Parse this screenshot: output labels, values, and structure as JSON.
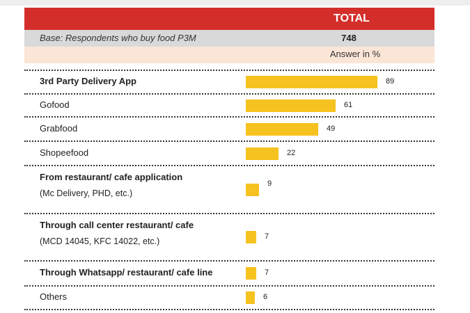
{
  "header": {
    "total_label": "TOTAL"
  },
  "base": {
    "label": "Base: Respondents who buy food P3M",
    "count": "748"
  },
  "answer_unit": "Answer in %",
  "chart_data": {
    "type": "bar",
    "orientation": "horizontal",
    "title": "",
    "xlabel": "",
    "ylabel": "",
    "xlim": [
      0,
      100
    ],
    "categories": [
      "3rd Party Delivery App",
      "Gofood",
      "Grabfood",
      "Shopeefood",
      "From restaurant/ cafe application",
      "Through call center restaurant/ cafe",
      "Through Whatsapp/ restaurant/ cafe line",
      "Others"
    ],
    "subtitles": [
      "",
      "",
      "",
      "",
      "(Mc Delivery, PHD, etc.)",
      "(MCD 14045, KFC 14022, etc.)",
      "",
      ""
    ],
    "bold": [
      true,
      false,
      false,
      false,
      true,
      true,
      true,
      false
    ],
    "values": [
      89,
      61,
      49,
      22,
      9,
      7,
      7,
      6
    ],
    "bar_color": "#f6c21f"
  },
  "colors": {
    "header_red": "#d42e2a",
    "base_gray": "#d9d9d9",
    "answer_peach": "#fbe5d6"
  }
}
